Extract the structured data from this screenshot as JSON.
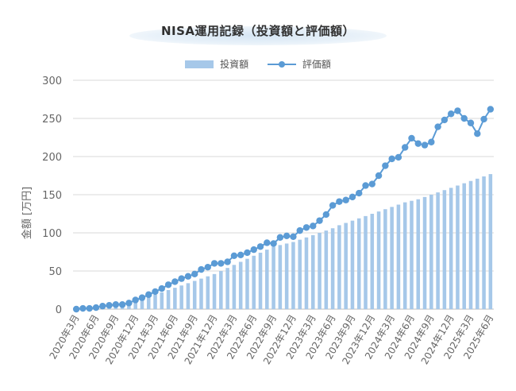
{
  "chart_data": {
    "type": "bar+line",
    "title": "NISA運用記録（投資額と評価額）",
    "ylabel": "金額 [万円]",
    "ylim": [
      0,
      300
    ],
    "yticks": [
      0,
      50,
      100,
      150,
      200,
      250,
      300
    ],
    "grid": true,
    "legend_position": "top",
    "categories": [
      "2020年3月",
      "2020年4月",
      "2020年5月",
      "2020年6月",
      "2020年7月",
      "2020年8月",
      "2020年9月",
      "2020年10月",
      "2020年11月",
      "2020年12月",
      "2021年1月",
      "2021年2月",
      "2021年3月",
      "2021年4月",
      "2021年5月",
      "2021年6月",
      "2021年7月",
      "2021年8月",
      "2021年9月",
      "2021年10月",
      "2021年11月",
      "2021年12月",
      "2022年1月",
      "2022年2月",
      "2022年3月",
      "2022年4月",
      "2022年5月",
      "2022年6月",
      "2022年7月",
      "2022年8月",
      "2022年9月",
      "2022年10月",
      "2022年11月",
      "2022年12月",
      "2023年1月",
      "2023年2月",
      "2023年3月",
      "2023年4月",
      "2023年5月",
      "2023年6月",
      "2023年7月",
      "2023年8月",
      "2023年9月",
      "2023年10月",
      "2023年11月",
      "2023年12月",
      "2024年1月",
      "2024年2月",
      "2024年3月",
      "2024年4月",
      "2024年5月",
      "2024年6月",
      "2024年7月",
      "2024年8月",
      "2024年9月",
      "2024年10月",
      "2024年11月",
      "2024年12月",
      "2025年1月",
      "2025年2月",
      "2025年3月",
      "2025年4月",
      "2025年5月",
      "2025年6月"
    ],
    "tick_labels": [
      "2020年3月",
      "2020年6月",
      "2020年9月",
      "2020年12月",
      "2021年3月",
      "2021年6月",
      "2021年9月",
      "2021年12月",
      "2022年3月",
      "2022年6月",
      "2022年9月",
      "2022年12月",
      "2023年3月",
      "2023年6月",
      "2023年9月",
      "2023年12月",
      "2024年3月",
      "2024年6月",
      "2024年9月",
      "2024年12月",
      "2025年3月",
      "2025年6月"
    ],
    "series": [
      {
        "name": "投資額",
        "kind": "bar",
        "color": "#a6c8e9",
        "values": [
          0,
          1,
          2,
          3,
          4,
          5,
          6,
          7,
          8,
          10,
          13,
          16,
          19,
          22,
          25,
          28,
          31,
          34,
          37,
          40,
          43,
          46,
          50,
          54,
          58,
          62,
          66,
          70,
          74,
          78,
          82,
          84,
          86,
          88,
          91,
          94,
          97,
          100,
          103,
          106,
          110,
          113,
          116,
          119,
          122,
          125,
          128,
          131,
          134,
          137,
          140,
          142,
          144,
          147,
          150,
          153,
          156,
          159,
          162,
          165,
          168,
          171,
          174,
          177
        ]
      },
      {
        "name": "評価額",
        "kind": "line",
        "color": "#5b9bd5",
        "values": [
          0,
          1,
          1,
          2,
          4,
          5,
          6,
          6,
          8,
          12,
          15,
          19,
          23,
          27,
          32,
          36,
          40,
          43,
          46,
          52,
          55,
          60,
          60,
          62,
          70,
          71,
          74,
          78,
          82,
          87,
          86,
          94,
          96,
          95,
          103,
          107,
          109,
          116,
          124,
          136,
          141,
          143,
          147,
          152,
          162,
          164,
          175,
          188,
          197,
          199,
          212,
          224,
          217,
          215,
          219,
          239,
          248,
          256,
          260,
          250,
          244,
          230,
          249,
          262
        ]
      }
    ]
  }
}
